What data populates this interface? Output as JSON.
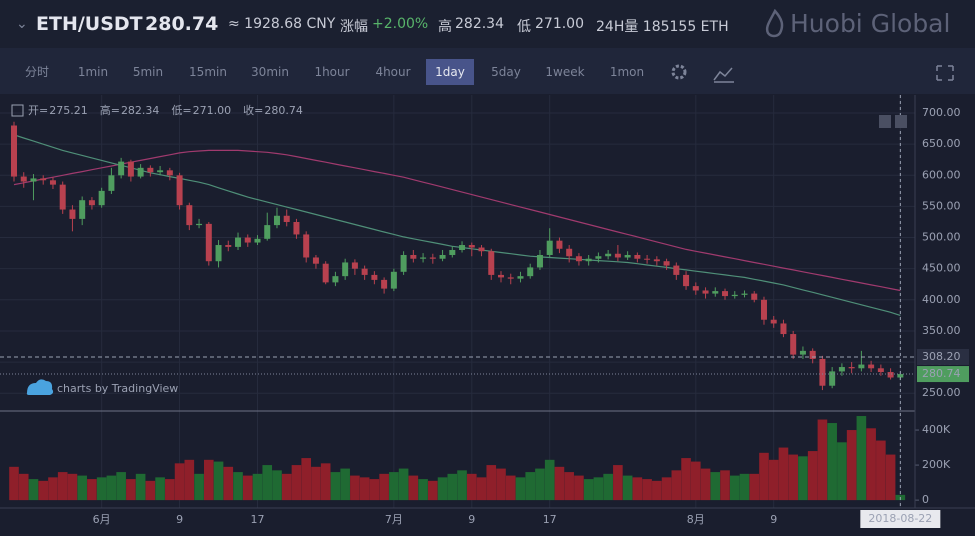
{
  "header": {
    "pair": "ETH/USDT",
    "price": "280.74",
    "cny": "≈ 1928.68 CNY",
    "change_label": "涨幅",
    "change": "+2.00%",
    "high_label": "高",
    "high": "282.34",
    "low_label": "低",
    "low": "271.00",
    "volume": "24H量 185155 ETH",
    "brand": "Huobi Global"
  },
  "toolbar": {
    "intervals": [
      "分时",
      "1min",
      "5min",
      "15min",
      "30min",
      "1hour",
      "4hour",
      "1day",
      "5day",
      "1week",
      "1mon"
    ],
    "active": 7
  },
  "legend": [
    {
      "k": "开=",
      "v": "275.21"
    },
    {
      "k": "高=",
      "v": "282.34"
    },
    {
      "k": "低=",
      "v": "271.00"
    },
    {
      "k": "收=",
      "v": "280.74"
    }
  ],
  "watermark": "charts by TradingView",
  "chart_data": {
    "type": "candlestick",
    "categories": [
      null,
      null,
      null,
      null,
      null,
      null,
      null,
      null,
      null,
      "6月",
      null,
      null,
      null,
      null,
      null,
      null,
      null,
      "9",
      null,
      null,
      null,
      null,
      null,
      null,
      null,
      "17",
      null,
      null,
      null,
      null,
      null,
      null,
      null,
      null,
      null,
      null,
      null,
      null,
      null,
      "7月",
      null,
      null,
      null,
      null,
      null,
      null,
      null,
      "9",
      null,
      null,
      null,
      null,
      null,
      null,
      null,
      "17",
      null,
      null,
      null,
      null,
      null,
      null,
      null,
      null,
      null,
      null,
      null,
      null,
      null,
      null,
      "8月",
      null,
      null,
      null,
      null,
      null,
      null,
      null,
      "9",
      null,
      null,
      null,
      null,
      null,
      null,
      null,
      null,
      null,
      null,
      null,
      null,
      "2018-08-22"
    ],
    "candles": [
      [
        680,
        686,
        590,
        598
      ],
      [
        598,
        605,
        580,
        590
      ],
      [
        590,
        602,
        560,
        595
      ],
      [
        595,
        600,
        585,
        592
      ],
      [
        592,
        597,
        578,
        585
      ],
      [
        585,
        590,
        538,
        545
      ],
      [
        545,
        552,
        510,
        530
      ],
      [
        530,
        566,
        520,
        560
      ],
      [
        560,
        565,
        545,
        552
      ],
      [
        552,
        580,
        548,
        575
      ],
      [
        575,
        612,
        570,
        600
      ],
      [
        600,
        628,
        595,
        622
      ],
      [
        622,
        625,
        590,
        598
      ],
      [
        598,
        618,
        595,
        612
      ],
      [
        612,
        616,
        598,
        605
      ],
      [
        605,
        615,
        600,
        608
      ],
      [
        608,
        612,
        592,
        600
      ],
      [
        600,
        604,
        545,
        552
      ],
      [
        552,
        556,
        512,
        520
      ],
      [
        520,
        530,
        515,
        522
      ],
      [
        522,
        525,
        455,
        462
      ],
      [
        462,
        496,
        452,
        488
      ],
      [
        488,
        495,
        478,
        485
      ],
      [
        485,
        508,
        480,
        500
      ],
      [
        500,
        505,
        485,
        492
      ],
      [
        492,
        504,
        488,
        498
      ],
      [
        498,
        540,
        495,
        520
      ],
      [
        520,
        548,
        515,
        535
      ],
      [
        535,
        545,
        518,
        525
      ],
      [
        525,
        530,
        498,
        505
      ],
      [
        505,
        510,
        460,
        468
      ],
      [
        468,
        472,
        450,
        458
      ],
      [
        458,
        462,
        425,
        428
      ],
      [
        428,
        445,
        422,
        438
      ],
      [
        438,
        466,
        432,
        460
      ],
      [
        460,
        465,
        440,
        450
      ],
      [
        450,
        455,
        432,
        440
      ],
      [
        440,
        446,
        425,
        432
      ],
      [
        432,
        436,
        410,
        418
      ],
      [
        418,
        450,
        414,
        445
      ],
      [
        445,
        478,
        440,
        472
      ],
      [
        472,
        480,
        460,
        466
      ],
      [
        466,
        475,
        460,
        468
      ],
      [
        468,
        474,
        458,
        466
      ],
      [
        466,
        480,
        462,
        472
      ],
      [
        472,
        486,
        468,
        480
      ],
      [
        480,
        494,
        476,
        488
      ],
      [
        488,
        492,
        470,
        484
      ],
      [
        484,
        488,
        470,
        478
      ],
      [
        478,
        482,
        432,
        440
      ],
      [
        440,
        446,
        428,
        436
      ],
      [
        436,
        442,
        425,
        434
      ],
      [
        434,
        445,
        428,
        438
      ],
      [
        438,
        458,
        434,
        452
      ],
      [
        452,
        480,
        448,
        472
      ],
      [
        472,
        515,
        468,
        495
      ],
      [
        495,
        500,
        475,
        482
      ],
      [
        482,
        488,
        460,
        470
      ],
      [
        470,
        475,
        455,
        462
      ],
      [
        462,
        472,
        455,
        466
      ],
      [
        466,
        476,
        460,
        470
      ],
      [
        470,
        480,
        465,
        474
      ],
      [
        474,
        488,
        462,
        468
      ],
      [
        468,
        478,
        464,
        472
      ],
      [
        472,
        476,
        460,
        466
      ],
      [
        466,
        472,
        458,
        465
      ],
      [
        465,
        470,
        455,
        462
      ],
      [
        462,
        466,
        448,
        455
      ],
      [
        455,
        460,
        432,
        440
      ],
      [
        440,
        446,
        416,
        422
      ],
      [
        422,
        428,
        408,
        415
      ],
      [
        415,
        420,
        402,
        410
      ],
      [
        410,
        420,
        405,
        414
      ],
      [
        414,
        418,
        400,
        406
      ],
      [
        406,
        414,
        402,
        408
      ],
      [
        408,
        415,
        404,
        410
      ],
      [
        410,
        414,
        396,
        400
      ],
      [
        400,
        405,
        360,
        368
      ],
      [
        368,
        374,
        355,
        362
      ],
      [
        362,
        368,
        340,
        345
      ],
      [
        345,
        350,
        305,
        312
      ],
      [
        312,
        325,
        305,
        318
      ],
      [
        318,
        322,
        298,
        305
      ],
      [
        305,
        310,
        255,
        262
      ],
      [
        262,
        292,
        258,
        285
      ],
      [
        285,
        298,
        278,
        292
      ],
      [
        292,
        300,
        282,
        290
      ],
      [
        290,
        318,
        285,
        296
      ],
      [
        296,
        302,
        284,
        290
      ],
      [
        290,
        296,
        278,
        284
      ],
      [
        284,
        290,
        272,
        275.21
      ],
      [
        275.21,
        282.34,
        271.0,
        280.74
      ]
    ],
    "volumes": [
      190000,
      150000,
      120000,
      110000,
      130000,
      160000,
      150000,
      140000,
      120000,
      130000,
      140000,
      160000,
      120000,
      150000,
      110000,
      130000,
      120000,
      210000,
      230000,
      150000,
      230000,
      220000,
      190000,
      160000,
      140000,
      150000,
      200000,
      170000,
      150000,
      200000,
      240000,
      190000,
      210000,
      160000,
      180000,
      140000,
      130000,
      120000,
      150000,
      160000,
      180000,
      140000,
      120000,
      110000,
      130000,
      150000,
      170000,
      150000,
      130000,
      200000,
      180000,
      140000,
      130000,
      160000,
      180000,
      230000,
      190000,
      160000,
      140000,
      120000,
      130000,
      150000,
      200000,
      140000,
      130000,
      120000,
      110000,
      130000,
      170000,
      240000,
      220000,
      180000,
      160000,
      170000,
      140000,
      150000,
      150000,
      270000,
      230000,
      300000,
      260000,
      250000,
      280000,
      460000,
      440000,
      330000,
      400000,
      480000,
      410000,
      340000,
      260000,
      30000
    ],
    "ma": [
      {
        "color": "#a03a6e",
        "values": [
          585,
          588,
          591,
          594,
          597,
          600,
          603,
          606,
          609,
          612,
          615,
          618,
          621,
          624,
          627,
          630,
          633,
          636,
          638,
          639,
          640,
          640,
          640,
          640,
          639,
          638,
          637,
          635,
          633,
          630,
          627,
          624,
          621,
          618,
          615,
          612,
          609,
          606,
          603,
          600,
          597,
          593,
          589,
          585,
          581,
          577,
          573,
          569,
          565,
          561,
          557,
          553,
          549,
          545,
          541,
          537,
          533,
          529,
          525,
          521,
          517,
          513,
          509,
          505,
          501,
          497,
          493,
          489,
          485,
          481,
          478,
          475,
          472,
          469,
          466,
          463,
          460,
          457,
          454,
          451,
          448,
          445,
          442,
          439,
          436,
          433,
          430,
          427,
          424,
          421,
          418,
          415
        ]
      },
      {
        "color": "#4f8f78",
        "values": [
          665,
          660,
          655,
          650,
          645,
          640,
          636,
          632,
          628,
          624,
          620,
          616,
          612,
          608,
          604,
          601,
          598,
          595,
          592,
          589,
          585,
          580,
          575,
          570,
          565,
          561,
          557,
          553,
          549,
          545,
          541,
          537,
          533,
          529,
          525,
          521,
          517,
          513,
          509,
          505,
          501,
          498,
          495,
          492,
          489,
          486,
          484,
          482,
          480,
          478,
          476,
          474,
          472,
          470,
          469,
          468,
          467,
          466,
          465,
          464,
          463,
          462,
          461,
          460,
          458,
          456,
          454,
          452,
          450,
          448,
          446,
          444,
          442,
          440,
          438,
          436,
          433,
          430,
          427,
          424,
          420,
          416,
          412,
          408,
          404,
          400,
          396,
          392,
          388,
          384,
          380,
          375
        ]
      }
    ],
    "up_color": "#4f9d5f",
    "down_color": "#b8414f",
    "vol_up_color": "#1f6a33",
    "vol_down_color": "#8f1f2a",
    "ylim": [
      223,
      729
    ],
    "yticks": [
      {
        "value": 250,
        "label": "250.00"
      },
      {
        "value": 300,
        "label": "300.00"
      },
      {
        "value": 350,
        "label": "350.00"
      },
      {
        "value": 400,
        "label": "400.00"
      },
      {
        "value": 450,
        "label": "450.00"
      },
      {
        "value": 500,
        "label": "500.00"
      },
      {
        "value": 550,
        "label": "550.00"
      },
      {
        "value": 600,
        "label": "600.00"
      },
      {
        "value": 650,
        "label": "650.00"
      },
      {
        "value": 700,
        "label": "700.00"
      }
    ],
    "vol_ylim": [
      -45000,
      503000
    ],
    "vol_yticks": [
      0,
      {
        "value": 200000,
        "label": "200K"
      },
      {
        "value": 400000,
        "label": "400K"
      }
    ],
    "ref_line": {
      "value": 308.2,
      "label": "308.20"
    },
    "grid": true
  }
}
